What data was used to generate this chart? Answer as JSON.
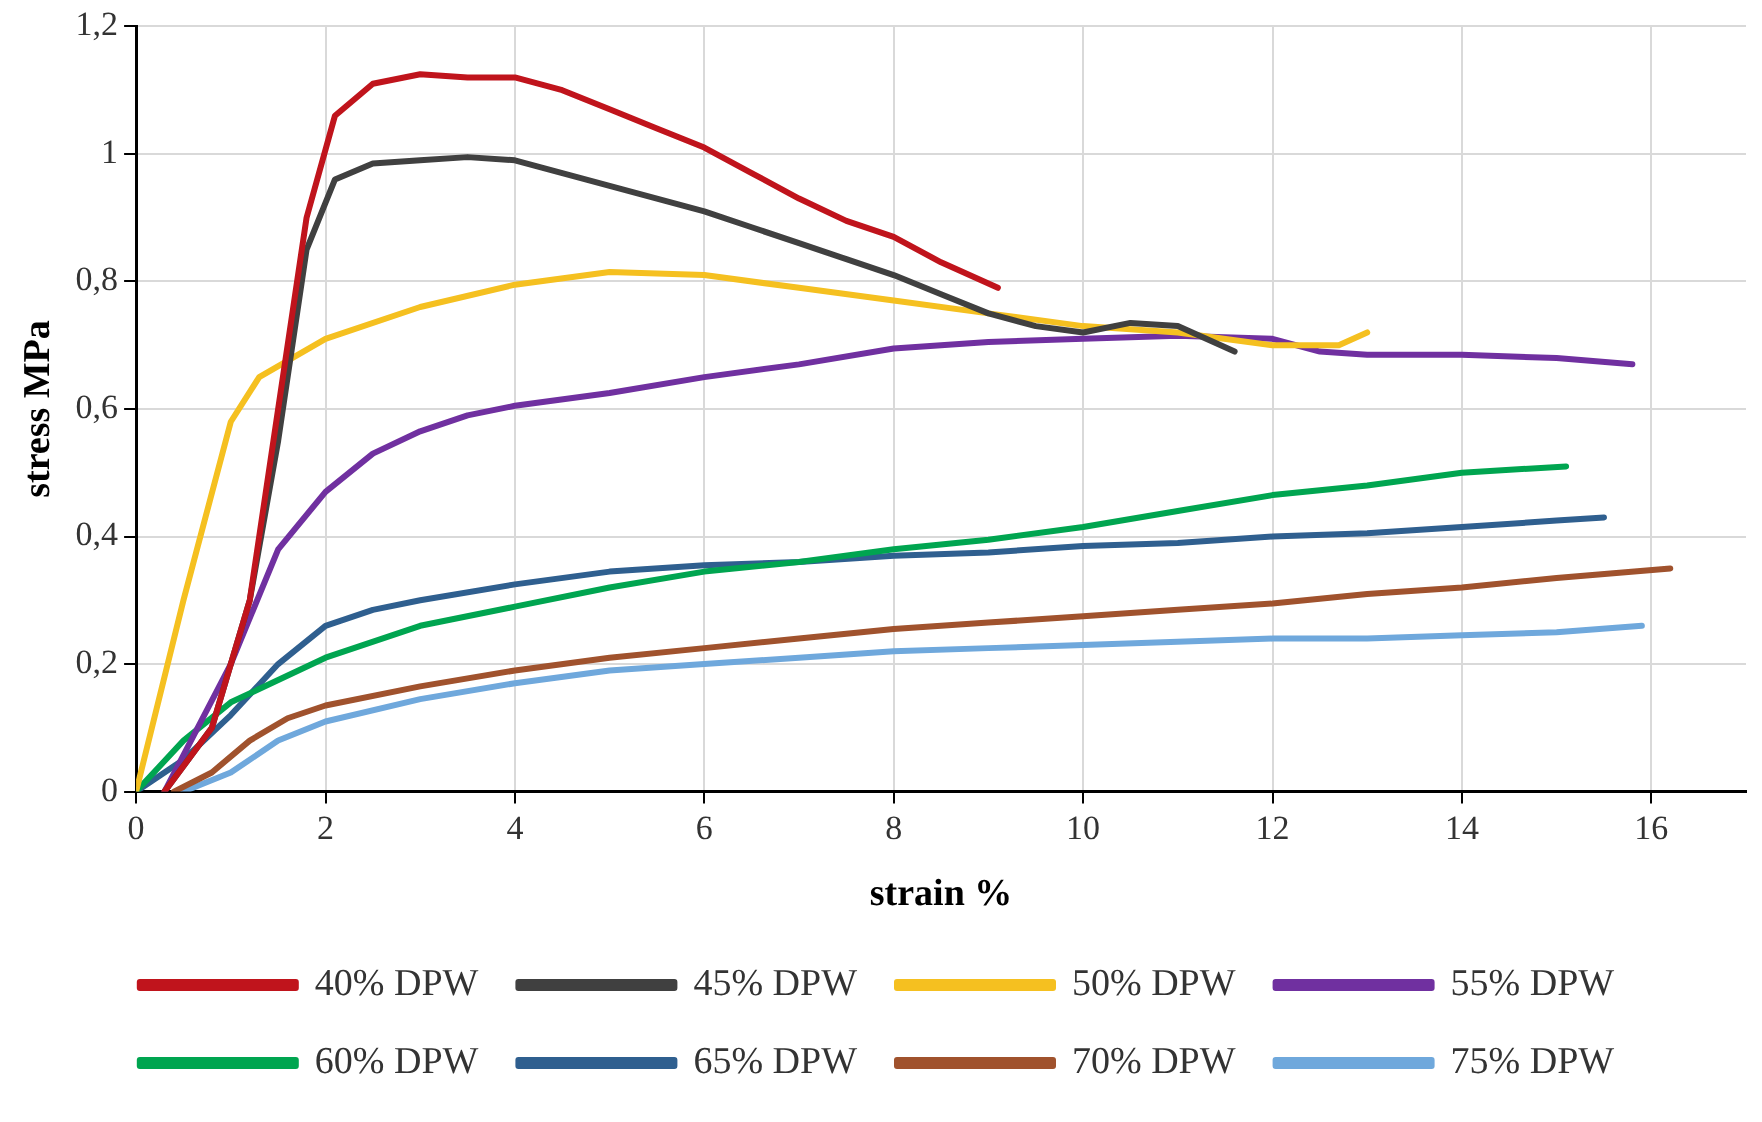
{
  "chart_data": {
    "type": "line",
    "xlabel": "strain %",
    "ylabel": "stress MPa",
    "xlim": [
      0,
      17
    ],
    "xticks": [
      0,
      2,
      4,
      6,
      8,
      10,
      12,
      14,
      16
    ],
    "ylim": [
      0,
      1.2
    ],
    "yticks": [
      0,
      {
        "value": 0.2,
        "label": "0,2"
      },
      {
        "value": 0.4,
        "label": "0,4"
      },
      {
        "value": 0.6,
        "label": "0,6"
      },
      {
        "value": 0.8,
        "label": "0,8"
      },
      1,
      {
        "value": 1.2,
        "label": "1,2"
      }
    ],
    "grid": true,
    "legend": "bottom",
    "marker": "none",
    "line_style": "solid",
    "series": [
      {
        "name": "40% DPW",
        "color": "#c0141c",
        "x": [
          0.3,
          0.8,
          1.2,
          1.5,
          1.8,
          2.1,
          2.5,
          3,
          3.5,
          4,
          4.5,
          5,
          5.5,
          6,
          6.5,
          7,
          7.5,
          8,
          8.5,
          9.1
        ],
        "values": [
          0,
          0.1,
          0.3,
          0.6,
          0.9,
          1.06,
          1.11,
          1.125,
          1.12,
          1.12,
          1.1,
          1.07,
          1.04,
          1.01,
          0.97,
          0.93,
          0.895,
          0.87,
          0.83,
          0.79
        ]
      },
      {
        "name": "45% DPW",
        "color": "#404040",
        "x": [
          0.3,
          0.8,
          1.2,
          1.5,
          1.8,
          2.1,
          2.5,
          3,
          3.5,
          4,
          4.5,
          5,
          5.5,
          6,
          6.5,
          7,
          7.5,
          8,
          8.5,
          9,
          9.5,
          10,
          10.5,
          11,
          11.6
        ],
        "values": [
          0,
          0.1,
          0.3,
          0.55,
          0.85,
          0.96,
          0.985,
          0.99,
          0.995,
          0.99,
          0.97,
          0.95,
          0.93,
          0.91,
          0.885,
          0.86,
          0.835,
          0.81,
          0.78,
          0.75,
          0.73,
          0.72,
          0.735,
          0.73,
          0.69
        ]
      },
      {
        "name": "50% DPW",
        "color": "#f5c020",
        "x": [
          0,
          0.5,
          1,
          1.3,
          2,
          3,
          4,
          5,
          6,
          7,
          8,
          9,
          10,
          11,
          12,
          12.7,
          13
        ],
        "values": [
          0,
          0.3,
          0.58,
          0.65,
          0.71,
          0.76,
          0.795,
          0.815,
          0.81,
          0.79,
          0.77,
          0.75,
          0.73,
          0.72,
          0.7,
          0.7,
          0.72
        ]
      },
      {
        "name": "55% DPW",
        "color": "#7030a0",
        "x": [
          0.3,
          1,
          1.5,
          2,
          2.5,
          3,
          3.5,
          4,
          5,
          6,
          7,
          8,
          9,
          10,
          11,
          12,
          12.5,
          13,
          14,
          15,
          15.8
        ],
        "values": [
          0,
          0.2,
          0.38,
          0.47,
          0.53,
          0.565,
          0.59,
          0.605,
          0.625,
          0.65,
          0.67,
          0.695,
          0.705,
          0.71,
          0.715,
          0.71,
          0.69,
          0.685,
          0.685,
          0.68,
          0.67
        ]
      },
      {
        "name": "60% DPW",
        "color": "#00a550",
        "x": [
          0,
          0.5,
          1,
          2,
          3,
          4,
          5,
          6,
          7,
          8,
          9,
          10,
          11,
          12,
          13,
          14,
          15.1
        ],
        "values": [
          0,
          0.08,
          0.14,
          0.21,
          0.26,
          0.29,
          0.32,
          0.345,
          0.36,
          0.38,
          0.395,
          0.415,
          0.44,
          0.465,
          0.48,
          0.5,
          0.51
        ]
      },
      {
        "name": "65% DPW",
        "color": "#2f5f8f",
        "x": [
          0,
          0.5,
          1,
          1.5,
          2,
          2.5,
          3,
          4,
          5,
          6,
          7,
          8,
          9,
          10,
          11,
          12,
          13,
          14,
          15,
          15.5
        ],
        "values": [
          0,
          0.05,
          0.12,
          0.2,
          0.26,
          0.285,
          0.3,
          0.325,
          0.345,
          0.355,
          0.36,
          0.37,
          0.375,
          0.385,
          0.39,
          0.4,
          0.405,
          0.415,
          0.425,
          0.43
        ]
      },
      {
        "name": "70% DPW",
        "color": "#a0522d",
        "x": [
          0.4,
          0.8,
          1.2,
          1.6,
          2,
          3,
          4,
          5,
          6,
          7,
          8,
          9,
          10,
          11,
          12,
          13,
          14,
          15,
          16.2
        ],
        "values": [
          0,
          0.03,
          0.08,
          0.115,
          0.135,
          0.165,
          0.19,
          0.21,
          0.225,
          0.24,
          0.255,
          0.265,
          0.275,
          0.285,
          0.295,
          0.31,
          0.32,
          0.335,
          0.35
        ]
      },
      {
        "name": "75% DPW",
        "color": "#6fa8dc",
        "x": [
          0.5,
          1,
          1.5,
          2,
          3,
          4,
          5,
          6,
          7,
          8,
          9,
          10,
          11,
          12,
          13,
          14,
          15,
          15.9
        ],
        "values": [
          0,
          0.03,
          0.08,
          0.11,
          0.145,
          0.17,
          0.19,
          0.2,
          0.21,
          0.22,
          0.225,
          0.23,
          0.235,
          0.24,
          0.24,
          0.245,
          0.25,
          0.26
        ]
      }
    ]
  }
}
